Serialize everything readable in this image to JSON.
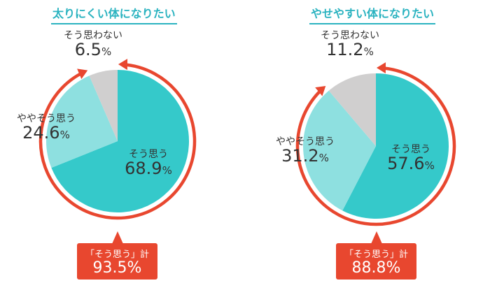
{
  "colors": {
    "sou_omou": "#35c9ca",
    "yaya_sou_omou": "#8ee0e0",
    "sou_omowanai": "#d0cfcf",
    "accent_red": "#e8472f",
    "title": "#2bb3c0"
  },
  "left": {
    "title": "太りにくい体になりたい",
    "segments": [
      {
        "label": "そう思う",
        "value": "68.9",
        "unit": "%"
      },
      {
        "label": "ややそう思う",
        "value": "24.6",
        "unit": "%"
      },
      {
        "label": "そう思わない",
        "value": "6.5",
        "unit": "%"
      }
    ],
    "callout": {
      "label": "「そう思う」計",
      "value": "93.5%"
    }
  },
  "right": {
    "title": "やせやすい体になりたい",
    "segments": [
      {
        "label": "そう思う",
        "value": "57.6",
        "unit": "%"
      },
      {
        "label": "ややそう思う",
        "value": "31.2",
        "unit": "%"
      },
      {
        "label": "そう思わない",
        "value": "11.2",
        "unit": "%"
      }
    ],
    "callout": {
      "label": "「そう思う」計",
      "value": "88.8%"
    }
  },
  "chart_data": [
    {
      "type": "pie",
      "title": "太りにくい体になりたい",
      "categories": [
        "そう思う",
        "ややそう思う",
        "そう思わない"
      ],
      "values": [
        68.9,
        24.6,
        6.5
      ],
      "annotations": [
        "「そう思う」計 93.5%"
      ]
    },
    {
      "type": "pie",
      "title": "やせやすい体になりたい",
      "categories": [
        "そう思う",
        "ややそう思う",
        "そう思わない"
      ],
      "values": [
        57.6,
        31.2,
        11.2
      ],
      "annotations": [
        "「そう思う」計 88.8%"
      ]
    }
  ]
}
